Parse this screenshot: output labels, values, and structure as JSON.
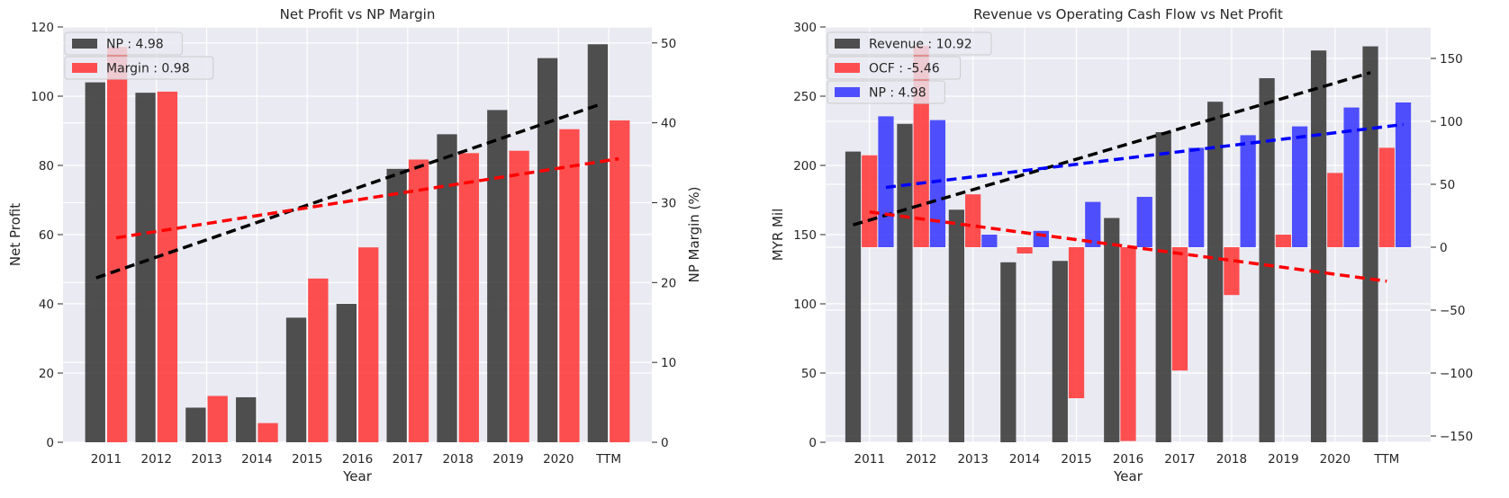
{
  "colors": {
    "np": "#333333",
    "margin": "#ff3333",
    "ocf": "#ff3333",
    "np_blue": "#3333ff",
    "trend_black": "#000000",
    "trend_red": "#ff0000",
    "trend_blue": "#0000ff",
    "plot_bg": "#eaeaf2",
    "grid": "#ffffff"
  },
  "chart_data": [
    {
      "type": "bar",
      "title": "Net Profit vs NP Margin",
      "xlabel": "Year",
      "ylabel": "Net Profit",
      "ylabel_right": "NP Margin (%)",
      "categories": [
        "2011",
        "2012",
        "2013",
        "2014",
        "2015",
        "2016",
        "2017",
        "2018",
        "2019",
        "2020",
        "TTM"
      ],
      "ylim": [
        0,
        120
      ],
      "yticks": [
        0,
        20,
        40,
        60,
        80,
        100,
        120
      ],
      "y2lim": [
        0,
        52
      ],
      "y2ticks": [
        0,
        10,
        20,
        30,
        40,
        50
      ],
      "grid": true,
      "legend_position": "top-left",
      "series": [
        {
          "name": "NP : 4.98",
          "axis": "left",
          "color": "#333333",
          "values": [
            104,
            101,
            10,
            13,
            36,
            40,
            79,
            89,
            96,
            111,
            115
          ],
          "trend": {
            "start": 47.5,
            "end": 97.5,
            "color": "#000000"
          }
        },
        {
          "name": "Margin : 0.98",
          "axis": "right",
          "color": "#ff3333",
          "values": [
            49.5,
            43.9,
            5.8,
            2.4,
            20.5,
            24.4,
            35.4,
            36.2,
            36.5,
            39.2,
            40.3
          ],
          "trend": {
            "start": 25.6,
            "end": 35.5,
            "color": "#ff0000"
          }
        }
      ]
    },
    {
      "type": "bar",
      "title": "Revenue vs Operating Cash Flow vs Net Profit",
      "xlabel": "Year",
      "ylabel": "MYR Mil",
      "categories": [
        "2011",
        "2012",
        "2013",
        "2014",
        "2015",
        "2016",
        "2017",
        "2018",
        "2019",
        "2020",
        "TTM"
      ],
      "ylim": [
        0,
        300
      ],
      "yticks": [
        0,
        50,
        100,
        150,
        200,
        250,
        300
      ],
      "y2lim": [
        -155,
        175
      ],
      "y2ticks": [
        -150,
        -100,
        -50,
        0,
        50,
        100,
        150
      ],
      "grid": true,
      "legend_position": "top-left",
      "series": [
        {
          "name": "Revenue : 10.92",
          "axis": "left",
          "color": "#333333",
          "values": [
            210,
            230,
            168,
            130,
            131,
            162,
            224,
            246,
            263,
            283,
            286
          ],
          "trend": {
            "start": 157,
            "end": 267,
            "color": "#000000"
          }
        },
        {
          "name": "OCF : -5.46",
          "axis": "right",
          "color": "#ff3333",
          "values": [
            73,
            160,
            42,
            -5,
            -120,
            -154,
            -98,
            -38,
            10,
            59,
            79
          ],
          "trend": {
            "start": 28,
            "end": -27,
            "color": "#ff0000"
          }
        },
        {
          "name": "NP : 4.98",
          "axis": "right",
          "color": "#3333ff",
          "values": [
            104,
            101,
            10,
            13,
            36,
            40,
            79,
            89,
            96,
            111,
            115
          ],
          "trend": {
            "start": 47.5,
            "end": 97.5,
            "color": "#0000ff"
          }
        }
      ]
    }
  ]
}
